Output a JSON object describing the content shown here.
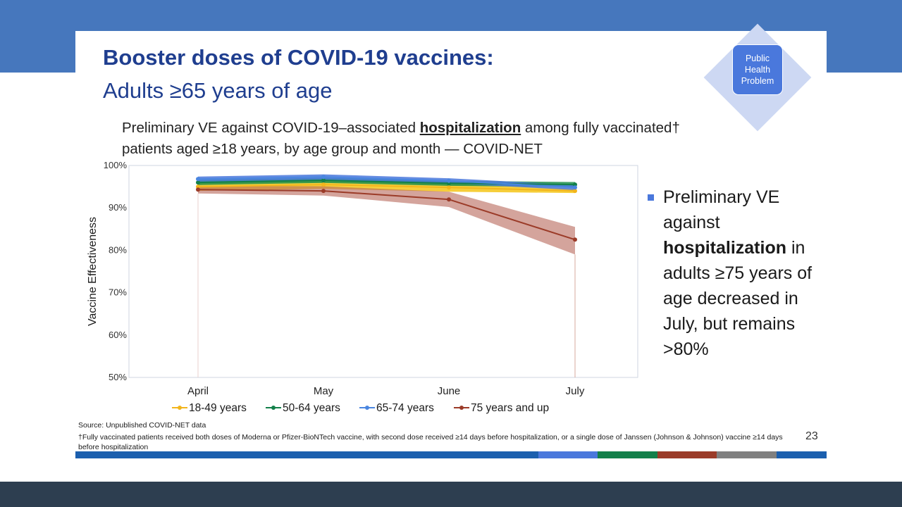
{
  "slide": {
    "title": "Booster doses of COVID-19 vaccines:",
    "subtitle": "Adults ≥65 years of age",
    "badge_text": "Public\nHealth\nProblem",
    "page_number": "23"
  },
  "chart_heading": {
    "part1": "Preliminary VE against COVID-19–associated ",
    "bold": "hospitalization",
    "part2": " among fully vaccinated† patients aged ≥18 years, by age group and month — COVID-NET"
  },
  "bullet": {
    "before": "Preliminary VE against ",
    "bold": "hospitalization",
    "after": " in adults ≥75 years of age decreased in July, but remains >80%"
  },
  "footer": {
    "source": "Source: Unpublished COVID-NET data",
    "footnote": "†Fully vaccinated patients received both doses of Moderna or Pfizer-BioNTech vaccine, with second dose received ≥14 days before hospitalization, or a single dose of Janssen (Johnson & Johnson) vaccine ≥14 days before hospitalization"
  },
  "colors": {
    "title": "#1f3e8f",
    "top_band": "#4677bd",
    "bottom_band": "#2d3e50",
    "stripe": [
      "#1b5fae",
      "#4a78dc",
      "#13804a",
      "#9b3b28",
      "#808080",
      "#1b5fae"
    ]
  },
  "chart_data": {
    "type": "line",
    "categories": [
      "April",
      "May",
      "June",
      "July"
    ],
    "ylabel": "Vaccine Effectiveness",
    "ylim": [
      50,
      100
    ],
    "yticks": [
      "50%",
      "60%",
      "70%",
      "80%",
      "90%",
      "100%"
    ],
    "legend_position": "bottom",
    "series": [
      {
        "name": "18-49 years",
        "color": "#f2b51c",
        "band_color": "#f5c518",
        "values": [
          95.0,
          95.5,
          94.8,
          94.0
        ],
        "lower": [
          94.0,
          94.5,
          93.8,
          93.5
        ],
        "upper": [
          96.0,
          96.5,
          95.8,
          94.5
        ]
      },
      {
        "name": "50-64 years",
        "color": "#13804a",
        "band_color": "#1e8f4e",
        "values": [
          96.0,
          96.5,
          95.8,
          95.5
        ],
        "lower": [
          95.4,
          95.9,
          95.2,
          94.9
        ],
        "upper": [
          96.6,
          97.1,
          96.4,
          96.1
        ]
      },
      {
        "name": "65-74 years",
        "color": "#4a86e0",
        "band_color": "#4a78dc",
        "values": [
          96.8,
          97.3,
          96.4,
          94.8
        ],
        "lower": [
          96.2,
          96.7,
          95.8,
          94.2
        ],
        "upper": [
          97.4,
          97.9,
          97.0,
          95.4
        ]
      },
      {
        "name": "75 years and up",
        "color": "#9b3b28",
        "band_color": "#b8685a",
        "values": [
          94.3,
          94.0,
          92.0,
          82.5
        ],
        "lower": [
          93.4,
          92.9,
          90.2,
          79.0
        ],
        "upper": [
          95.2,
          95.1,
          93.8,
          85.5
        ]
      }
    ]
  }
}
